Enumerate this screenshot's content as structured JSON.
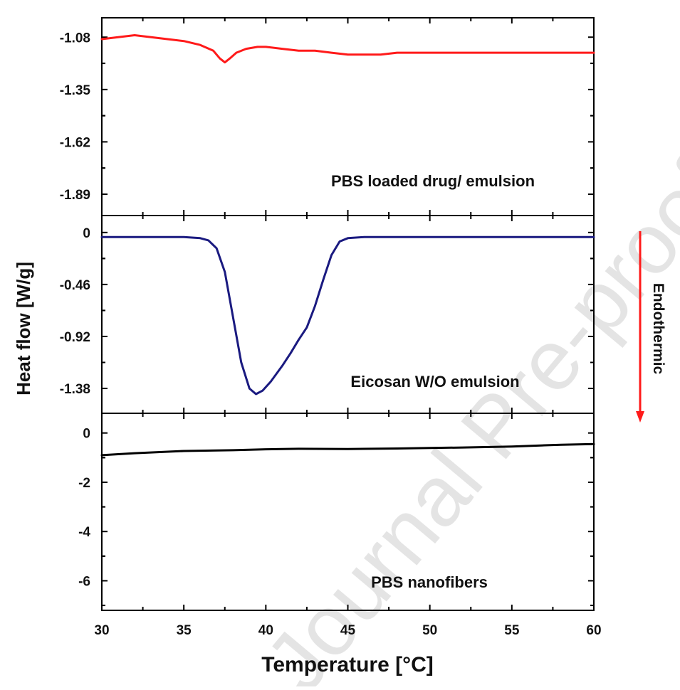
{
  "chart_data": {
    "type": "line",
    "xlabel": "Temperature [°C]",
    "ylabel": "Heat flow [W/g]",
    "xlim": [
      30,
      60
    ],
    "xticks": [
      30,
      35,
      40,
      45,
      50,
      55,
      60
    ],
    "direction_label": "Endothermic",
    "watermark": "Journal Pre-proof",
    "panels": [
      {
        "name": "PBS loaded drug/ emulsion",
        "annotation": "PBS loaded drug/ emulsion",
        "color": "#ff1a1a",
        "ylim": [
          -2.0,
          -0.98
        ],
        "yticks": [
          -1.08,
          -1.35,
          -1.62,
          -1.89
        ],
        "series": {
          "x": [
            30,
            31,
            32,
            33,
            34,
            35,
            36,
            36.8,
            37.2,
            37.5,
            37.8,
            38.2,
            38.8,
            39.5,
            40,
            41,
            42,
            43,
            44,
            45,
            46,
            47,
            48,
            49,
            50,
            52,
            55,
            58,
            60
          ],
          "y": [
            -1.09,
            -1.08,
            -1.07,
            -1.08,
            -1.09,
            -1.1,
            -1.12,
            -1.15,
            -1.19,
            -1.21,
            -1.19,
            -1.16,
            -1.14,
            -1.13,
            -1.13,
            -1.14,
            -1.15,
            -1.15,
            -1.16,
            -1.17,
            -1.17,
            -1.17,
            -1.16,
            -1.16,
            -1.16,
            -1.16,
            -1.16,
            -1.16,
            -1.16
          ]
        }
      },
      {
        "name": "Eicosan W/O emulsion",
        "annotation": "Eicosan W/O emulsion",
        "color": "#1a1a80",
        "ylim": [
          -1.6,
          0.15
        ],
        "yticks": [
          0.0,
          -0.46,
          -0.92,
          -1.38
        ],
        "series": {
          "x": [
            30,
            33,
            35,
            36,
            36.5,
            37,
            37.5,
            38,
            38.5,
            39,
            39.4,
            39.8,
            40.3,
            41,
            41.5,
            42,
            42.5,
            43,
            43.5,
            44,
            44.5,
            45,
            46,
            48,
            50,
            55,
            60
          ],
          "y": [
            -0.04,
            -0.04,
            -0.04,
            -0.05,
            -0.07,
            -0.14,
            -0.35,
            -0.75,
            -1.15,
            -1.38,
            -1.43,
            -1.4,
            -1.32,
            -1.18,
            -1.07,
            -0.95,
            -0.84,
            -0.65,
            -0.42,
            -0.2,
            -0.08,
            -0.05,
            -0.04,
            -0.04,
            -0.04,
            -0.04,
            -0.04
          ]
        }
      },
      {
        "name": "PBS nanofibers",
        "annotation": "PBS nanofibers",
        "color": "#000000",
        "ylim": [
          -7.2,
          0.8
        ],
        "yticks": [
          0,
          -2,
          -4,
          -6
        ],
        "series": {
          "x": [
            30,
            32,
            35,
            38,
            40,
            42,
            45,
            48,
            50,
            52,
            55,
            57,
            58,
            60
          ],
          "y": [
            -0.9,
            -0.82,
            -0.73,
            -0.7,
            -0.66,
            -0.64,
            -0.65,
            -0.63,
            -0.61,
            -0.59,
            -0.55,
            -0.5,
            -0.48,
            -0.45
          ]
        }
      }
    ]
  }
}
